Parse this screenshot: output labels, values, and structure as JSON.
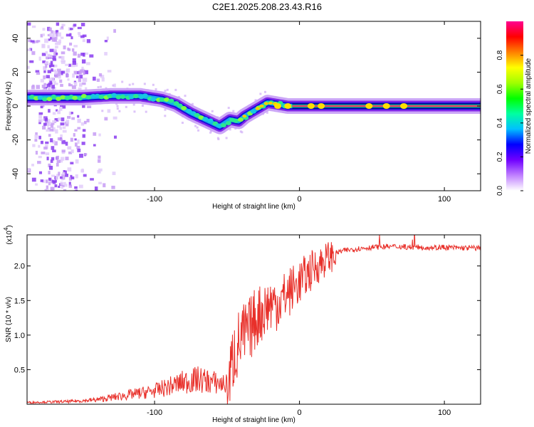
{
  "title": "C2E1.2025.208.23.43.R16",
  "chart_data": [
    {
      "type": "heatmap",
      "xlabel": "Height of straight line (km)",
      "ylabel": "Frequency (Hz)",
      "xlim": [
        -188,
        125
      ],
      "ylim": [
        -50,
        50
      ],
      "x_ticks": [
        -100,
        0,
        100
      ],
      "y_ticks": [
        -40,
        -20,
        0,
        20,
        40
      ],
      "colorbar": {
        "label": "Normalized spectral amplitude",
        "range": [
          0,
          1
        ],
        "ticks": [
          "0.0",
          "0.2",
          "0.4",
          "0.6",
          "0.8"
        ],
        "colors": [
          "#ffffff",
          "#c080ff",
          "#7000ff",
          "#0000ff",
          "#00c0ff",
          "#00ffa0",
          "#00ff00",
          "#a0ff00",
          "#ffff00",
          "#ff8000",
          "#ff0000",
          "#ff0090"
        ]
      },
      "ridge": [
        [
          -185,
          5
        ],
        [
          -170,
          5
        ],
        [
          -150,
          5
        ],
        [
          -130,
          6
        ],
        [
          -110,
          6
        ],
        [
          -95,
          4
        ],
        [
          -85,
          1
        ],
        [
          -75,
          -4
        ],
        [
          -65,
          -8
        ],
        [
          -55,
          -12
        ],
        [
          -48,
          -8
        ],
        [
          -42,
          -9
        ],
        [
          -38,
          -6
        ],
        [
          -30,
          -2
        ],
        [
          -22,
          2
        ],
        [
          -15,
          1
        ],
        [
          -8,
          0
        ],
        [
          0,
          0
        ],
        [
          20,
          0
        ],
        [
          60,
          0
        ],
        [
          125,
          0
        ]
      ]
    },
    {
      "type": "line",
      "xlabel": "Height of straight line (km)",
      "ylabel": "SNR (10 * v/v)",
      "y_scale_label": "(x10",
      "y_scale_exp": "4",
      "line_color": "#e8302a",
      "xlim": [
        -188,
        125
      ],
      "ylim": [
        0,
        2.45
      ],
      "x_ticks": [
        -100,
        0,
        100
      ],
      "y_ticks": [
        "0.5",
        "1.0",
        "1.5",
        "2.0"
      ],
      "envelope": {
        "x": [
          -188,
          -160,
          -140,
          -120,
          -100,
          -90,
          -80,
          -70,
          -60,
          -50,
          -45,
          -40,
          -35,
          -30,
          -25,
          -20,
          -15,
          -10,
          -5,
          0,
          10,
          20,
          30,
          40,
          50,
          60,
          70,
          80,
          90,
          100,
          110,
          125
        ],
        "y": [
          0.02,
          0.03,
          0.05,
          0.1,
          0.15,
          0.2,
          0.25,
          0.28,
          0.25,
          0.22,
          0.8,
          1.0,
          1.1,
          1.3,
          1.4,
          1.5,
          1.5,
          1.6,
          1.7,
          1.8,
          2.0,
          2.15,
          2.22,
          2.25,
          2.27,
          2.28,
          2.28,
          2.27,
          2.27,
          2.27,
          2.26,
          2.26
        ]
      }
    }
  ]
}
